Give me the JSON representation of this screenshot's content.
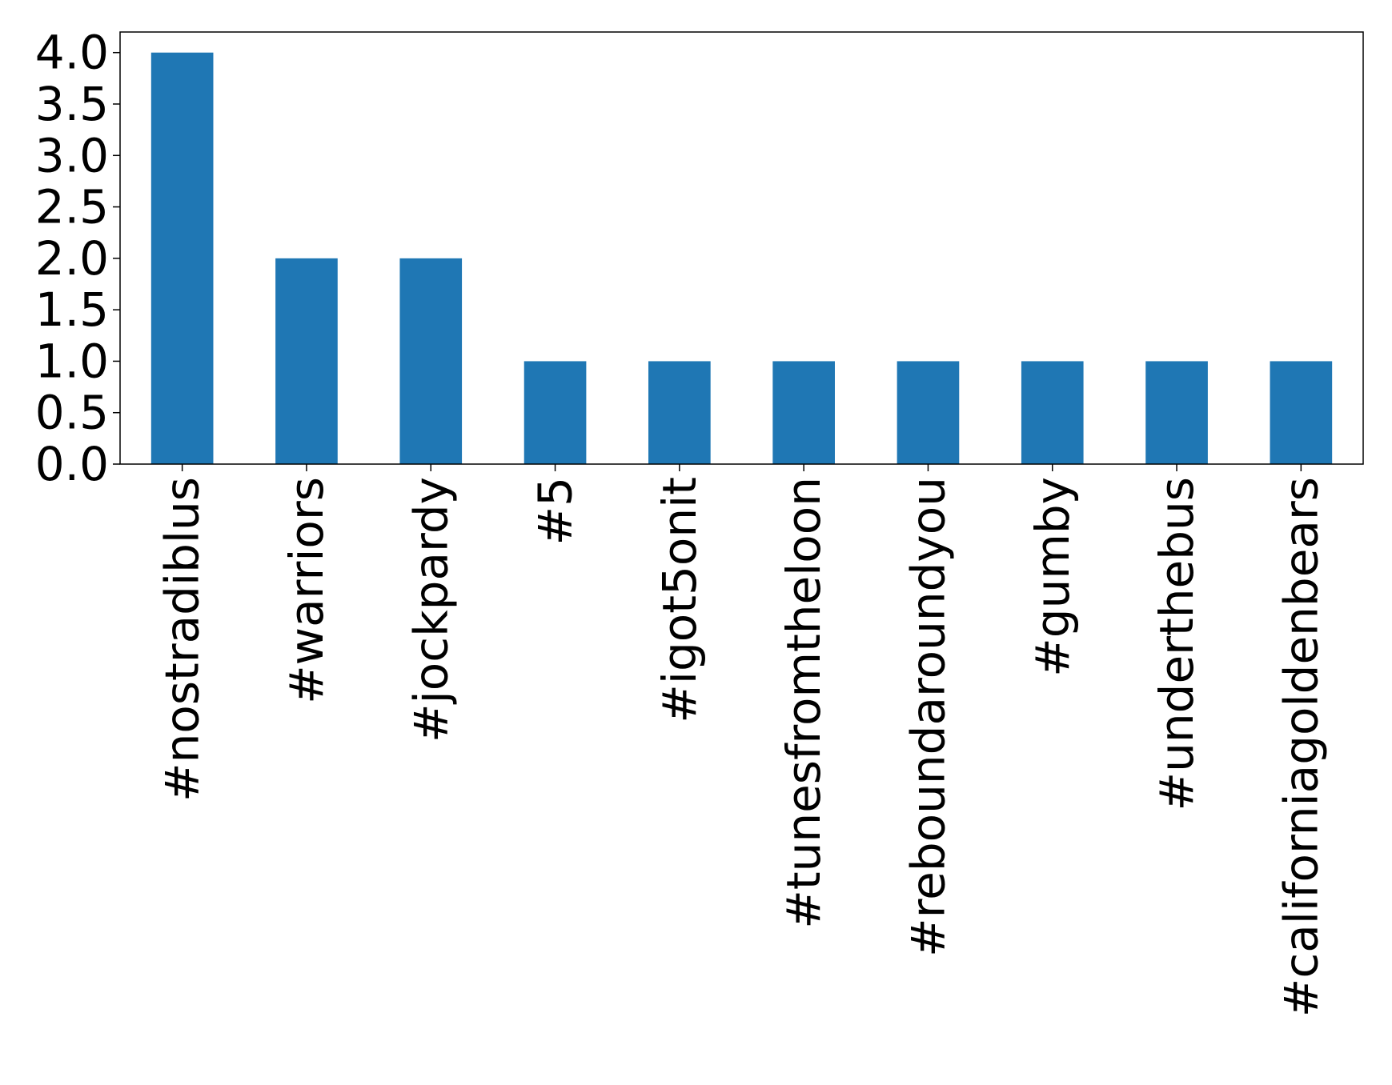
{
  "chart_data": {
    "type": "bar",
    "title": "",
    "xlabel": "",
    "ylabel": "",
    "categories": [
      "#nostradiblus",
      "#warriors",
      "#jockpardy",
      "#5",
      "#igot5onit",
      "#tunesfromtheloon",
      "#reboundaroundyou",
      "#gumby",
      "#underthebus",
      "#californiagoldenbears"
    ],
    "values": [
      4,
      2,
      2,
      1,
      1,
      1,
      1,
      1,
      1,
      1
    ],
    "ylim": [
      0,
      4.2
    ],
    "yticks": [
      "0.0",
      "0.5",
      "1.0",
      "1.5",
      "2.0",
      "2.5",
      "3.0",
      "3.5",
      "4.0"
    ],
    "grid": false,
    "legend": "none",
    "colors": {
      "bar": "#1f77b4",
      "axis": "#000000",
      "background": "#ffffff"
    }
  }
}
